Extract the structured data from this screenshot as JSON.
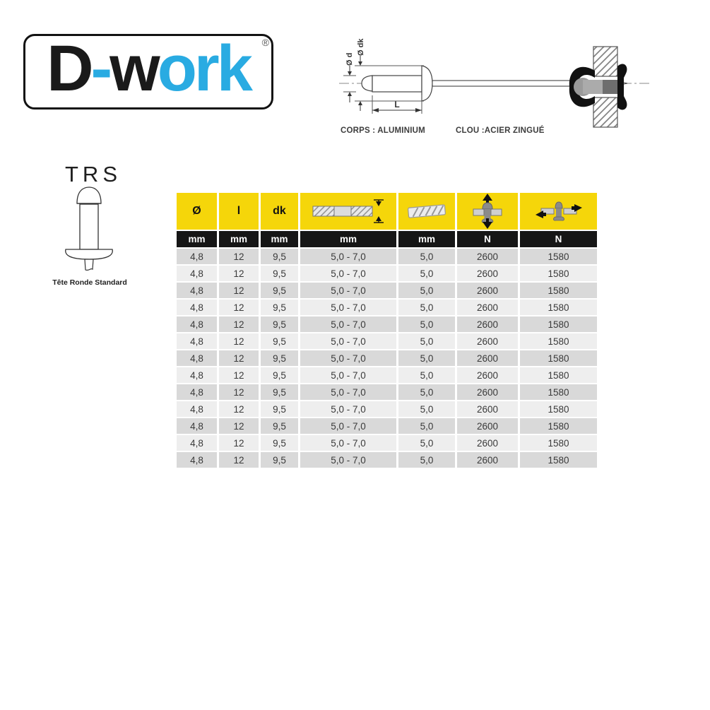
{
  "colors": {
    "logo_blue": "#29ABE2",
    "logo_black": "#1A1A1A",
    "header_yellow": "#F5D60A",
    "header_black": "#161616",
    "row_dark": "#D9D9D9",
    "row_light": "#EEEEEE",
    "text_dark": "#3A3A3A"
  },
  "logo": {
    "part_d": "D",
    "part_hyphen": "-",
    "part_w": "w",
    "part_ork": "ork",
    "registered": "®"
  },
  "diagram": {
    "label_d": "Ø d",
    "label_dk": "Ø dk",
    "label_l": "L",
    "corps": "CORPS : ALUMINIUM",
    "clou": "CLOU :ACIER ZINGUÉ"
  },
  "product": {
    "code": "TRS",
    "caption": "Tête Ronde Standard"
  },
  "icons": {
    "col4": "clamping-range-icon",
    "col5": "drill-diameter-icon",
    "col6": "tensile-strength-icon",
    "col7": "shear-strength-icon"
  },
  "table": {
    "columns": [
      {
        "header": "Ø",
        "unit": "mm"
      },
      {
        "header": "l",
        "unit": "mm"
      },
      {
        "header": "dk",
        "unit": "mm"
      },
      {
        "header": "",
        "icon": "clamping-range-icon",
        "unit": "mm"
      },
      {
        "header": "",
        "icon": "drill-diameter-icon",
        "unit": "mm"
      },
      {
        "header": "",
        "icon": "tensile-strength-icon",
        "unit": "N"
      },
      {
        "header": "",
        "icon": "shear-strength-icon",
        "unit": "N"
      }
    ],
    "rows": [
      [
        "4,8",
        "12",
        "9,5",
        "5,0 - 7,0",
        "5,0",
        "2600",
        "1580"
      ],
      [
        "4,8",
        "12",
        "9,5",
        "5,0 - 7,0",
        "5,0",
        "2600",
        "1580"
      ],
      [
        "4,8",
        "12",
        "9,5",
        "5,0 - 7,0",
        "5,0",
        "2600",
        "1580"
      ],
      [
        "4,8",
        "12",
        "9,5",
        "5,0 - 7,0",
        "5,0",
        "2600",
        "1580"
      ],
      [
        "4,8",
        "12",
        "9,5",
        "5,0 - 7,0",
        "5,0",
        "2600",
        "1580"
      ],
      [
        "4,8",
        "12",
        "9,5",
        "5,0 - 7,0",
        "5,0",
        "2600",
        "1580"
      ],
      [
        "4,8",
        "12",
        "9,5",
        "5,0 - 7,0",
        "5,0",
        "2600",
        "1580"
      ],
      [
        "4,8",
        "12",
        "9,5",
        "5,0 - 7,0",
        "5,0",
        "2600",
        "1580"
      ],
      [
        "4,8",
        "12",
        "9,5",
        "5,0 - 7,0",
        "5,0",
        "2600",
        "1580"
      ],
      [
        "4,8",
        "12",
        "9,5",
        "5,0 - 7,0",
        "5,0",
        "2600",
        "1580"
      ],
      [
        "4,8",
        "12",
        "9,5",
        "5,0 - 7,0",
        "5,0",
        "2600",
        "1580"
      ],
      [
        "4,8",
        "12",
        "9,5",
        "5,0 - 7,0",
        "5,0",
        "2600",
        "1580"
      ],
      [
        "4,8",
        "12",
        "9,5",
        "5,0 - 7,0",
        "5,0",
        "2600",
        "1580"
      ]
    ]
  }
}
